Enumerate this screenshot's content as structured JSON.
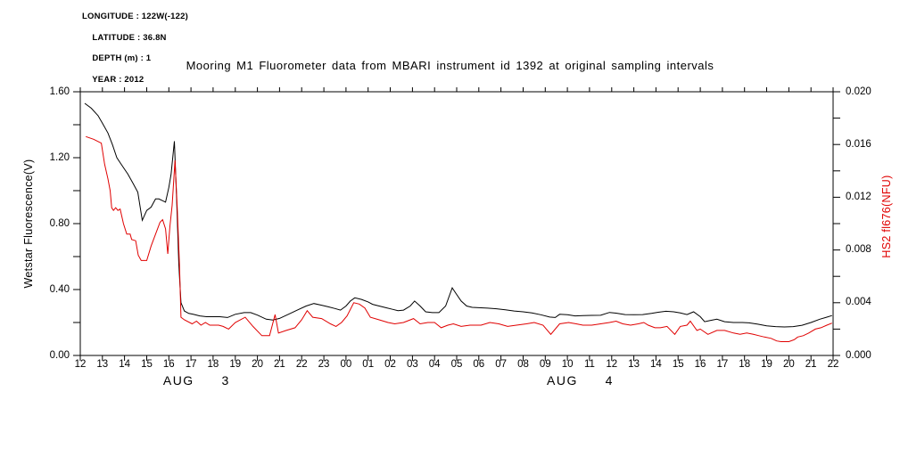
{
  "header": {
    "longitude": "LONGITUDE : 122W(-122)",
    "latitude": "LATITUDE : 36.8N",
    "depth": "DEPTH (m) : 1",
    "year": "YEAR : 2012"
  },
  "title": "Mooring M1 Fluorometer data from MBARI instrument id 1392 at original sampling intervals",
  "colors": {
    "foreground": "#000000",
    "accent_red": "#e00000",
    "background": "#ffffff"
  },
  "chart_data": {
    "type": "line",
    "title": "Mooring M1 Fluorometer data from MBARI instrument id 1392 at original sampling intervals",
    "grid": false,
    "legend": "none (dual y-axis, color-coded axis titles)",
    "x_axis": {
      "min_hour": 12,
      "max_hour": 46,
      "tick_interval_hours": 1,
      "tick_labels": [
        "12",
        "13",
        "14",
        "15",
        "16",
        "17",
        "18",
        "19",
        "20",
        "21",
        "22",
        "23",
        "00",
        "01",
        "02",
        "03",
        "04",
        "05",
        "06",
        "07",
        "08",
        "09",
        "10",
        "11",
        "12",
        "13",
        "14",
        "15",
        "16",
        "17",
        "18",
        "19",
        "20",
        "21",
        "22"
      ],
      "day_labels": [
        {
          "text": "AUG  3",
          "center_hour": 17.25
        },
        {
          "text": "AUG  4",
          "center_hour": 34.58
        }
      ]
    },
    "y_left": {
      "label": "Wetstar Fluorescence(V)",
      "color": "#000000",
      "min": 0.0,
      "max": 1.6,
      "tick_values": [
        0.0,
        0.4,
        0.8,
        1.2,
        1.6
      ],
      "tick_labels": [
        "0.00",
        "0.40",
        "0.80",
        "1.20",
        "1.60"
      ],
      "minor_step": 0.2
    },
    "y_right": {
      "label": "HS2 fl676(NFU)",
      "color": "#e00000",
      "min": 0.0,
      "max": 0.02,
      "tick_values": [
        0.0,
        0.004,
        0.008,
        0.012,
        0.016,
        0.02
      ],
      "tick_labels": [
        "0.000",
        "0.004",
        "0.008",
        "0.012",
        "0.016",
        "0.020"
      ],
      "minor_step": 0.002
    },
    "series": [
      {
        "name": "Wetstar Fluorescence (V)",
        "axis": "left",
        "color": "#000000",
        "points": [
          [
            12.2,
            1.53
          ],
          [
            12.5,
            1.5
          ],
          [
            12.7,
            1.47
          ],
          [
            12.8,
            1.455
          ],
          [
            13.0,
            1.41
          ],
          [
            13.25,
            1.35
          ],
          [
            13.45,
            1.28
          ],
          [
            13.65,
            1.2
          ],
          [
            13.8,
            1.17
          ],
          [
            13.95,
            1.14
          ],
          [
            14.15,
            1.1
          ],
          [
            14.4,
            1.04
          ],
          [
            14.6,
            0.99
          ],
          [
            14.8,
            0.82
          ],
          [
            15.0,
            0.88
          ],
          [
            15.2,
            0.9
          ],
          [
            15.4,
            0.95
          ],
          [
            15.55,
            0.95
          ],
          [
            15.7,
            0.94
          ],
          [
            15.85,
            0.93
          ],
          [
            16.0,
            1.02
          ],
          [
            16.1,
            1.1
          ],
          [
            16.25,
            1.3
          ],
          [
            16.35,
            0.95
          ],
          [
            16.45,
            0.55
          ],
          [
            16.55,
            0.32
          ],
          [
            16.7,
            0.27
          ],
          [
            16.9,
            0.255
          ],
          [
            17.1,
            0.25
          ],
          [
            17.4,
            0.24
          ],
          [
            17.7,
            0.235
          ],
          [
            18.0,
            0.235
          ],
          [
            18.3,
            0.235
          ],
          [
            18.65,
            0.23
          ],
          [
            19.0,
            0.25
          ],
          [
            19.4,
            0.26
          ],
          [
            19.7,
            0.26
          ],
          [
            20.0,
            0.245
          ],
          [
            20.4,
            0.22
          ],
          [
            20.7,
            0.215
          ],
          [
            21.0,
            0.225
          ],
          [
            21.4,
            0.25
          ],
          [
            21.8,
            0.275
          ],
          [
            22.2,
            0.3
          ],
          [
            22.55,
            0.315
          ],
          [
            22.9,
            0.305
          ],
          [
            23.2,
            0.295
          ],
          [
            23.5,
            0.285
          ],
          [
            23.75,
            0.275
          ],
          [
            24.0,
            0.3
          ],
          [
            24.2,
            0.33
          ],
          [
            24.4,
            0.35
          ],
          [
            24.7,
            0.34
          ],
          [
            25.0,
            0.325
          ],
          [
            25.2,
            0.31
          ],
          [
            25.5,
            0.3
          ],
          [
            25.8,
            0.29
          ],
          [
            26.1,
            0.28
          ],
          [
            26.35,
            0.272
          ],
          [
            26.6,
            0.275
          ],
          [
            26.9,
            0.3
          ],
          [
            27.1,
            0.33
          ],
          [
            27.35,
            0.3
          ],
          [
            27.6,
            0.265
          ],
          [
            27.9,
            0.26
          ],
          [
            28.2,
            0.26
          ],
          [
            28.5,
            0.3
          ],
          [
            28.8,
            0.41
          ],
          [
            29.0,
            0.37
          ],
          [
            29.2,
            0.33
          ],
          [
            29.45,
            0.3
          ],
          [
            29.7,
            0.292
          ],
          [
            30.0,
            0.29
          ],
          [
            30.4,
            0.287
          ],
          [
            30.8,
            0.283
          ],
          [
            31.2,
            0.277
          ],
          [
            31.6,
            0.27
          ],
          [
            32.0,
            0.265
          ],
          [
            32.4,
            0.258
          ],
          [
            32.8,
            0.247
          ],
          [
            33.2,
            0.233
          ],
          [
            33.45,
            0.23
          ],
          [
            33.65,
            0.25
          ],
          [
            34.0,
            0.247
          ],
          [
            34.35,
            0.24
          ],
          [
            34.7,
            0.242
          ],
          [
            35.1,
            0.243
          ],
          [
            35.5,
            0.244
          ],
          [
            35.9,
            0.261
          ],
          [
            36.2,
            0.257
          ],
          [
            36.6,
            0.248
          ],
          [
            37.0,
            0.247
          ],
          [
            37.4,
            0.248
          ],
          [
            37.8,
            0.255
          ],
          [
            38.1,
            0.262
          ],
          [
            38.45,
            0.268
          ],
          [
            38.8,
            0.265
          ],
          [
            39.1,
            0.258
          ],
          [
            39.4,
            0.248
          ],
          [
            39.7,
            0.265
          ],
          [
            40.0,
            0.235
          ],
          [
            40.2,
            0.205
          ],
          [
            40.45,
            0.212
          ],
          [
            40.75,
            0.22
          ],
          [
            41.1,
            0.205
          ],
          [
            41.5,
            0.2
          ],
          [
            41.9,
            0.2
          ],
          [
            42.2,
            0.198
          ],
          [
            42.6,
            0.19
          ],
          [
            43.0,
            0.18
          ],
          [
            43.4,
            0.175
          ],
          [
            43.8,
            0.173
          ],
          [
            44.2,
            0.175
          ],
          [
            44.6,
            0.183
          ],
          [
            45.0,
            0.2
          ],
          [
            45.4,
            0.22
          ],
          [
            45.7,
            0.232
          ],
          [
            45.95,
            0.242
          ]
        ]
      },
      {
        "name": "HS2 fl676 (NFU)",
        "axis": "right",
        "color": "#e00000",
        "points": [
          [
            12.25,
            0.0166
          ],
          [
            12.6,
            0.0164
          ],
          [
            12.95,
            0.0161
          ],
          [
            13.1,
            0.0145
          ],
          [
            13.25,
            0.0134
          ],
          [
            13.35,
            0.0125
          ],
          [
            13.42,
            0.0112
          ],
          [
            13.5,
            0.011
          ],
          [
            13.6,
            0.0112
          ],
          [
            13.7,
            0.011
          ],
          [
            13.8,
            0.0111
          ],
          [
            13.95,
            0.01
          ],
          [
            14.1,
            0.0092
          ],
          [
            14.25,
            0.0092
          ],
          [
            14.32,
            0.0088
          ],
          [
            14.5,
            0.0087
          ],
          [
            14.62,
            0.0076
          ],
          [
            14.75,
            0.0072
          ],
          [
            15.0,
            0.0072
          ],
          [
            15.2,
            0.0083
          ],
          [
            15.4,
            0.0092
          ],
          [
            15.6,
            0.0101
          ],
          [
            15.72,
            0.0103
          ],
          [
            15.85,
            0.0096
          ],
          [
            15.95,
            0.0077
          ],
          [
            16.05,
            0.0098
          ],
          [
            16.15,
            0.0114
          ],
          [
            16.28,
            0.0148
          ],
          [
            16.38,
            0.0112
          ],
          [
            16.48,
            0.0069
          ],
          [
            16.55,
            0.0029
          ],
          [
            16.7,
            0.0027
          ],
          [
            17.05,
            0.0024
          ],
          [
            17.25,
            0.0026
          ],
          [
            17.45,
            0.0023
          ],
          [
            17.65,
            0.0025
          ],
          [
            17.85,
            0.0023
          ],
          [
            18.25,
            0.0023
          ],
          [
            18.45,
            0.0022
          ],
          [
            18.7,
            0.002
          ],
          [
            19.0,
            0.0025
          ],
          [
            19.45,
            0.0029
          ],
          [
            19.8,
            0.0022
          ],
          [
            20.2,
            0.0015
          ],
          [
            20.55,
            0.0015
          ],
          [
            20.8,
            0.0031
          ],
          [
            20.95,
            0.0017
          ],
          [
            21.3,
            0.0019
          ],
          [
            21.7,
            0.0021
          ],
          [
            22.0,
            0.0027
          ],
          [
            22.25,
            0.0034
          ],
          [
            22.5,
            0.0029
          ],
          [
            22.9,
            0.0028
          ],
          [
            23.3,
            0.0024
          ],
          [
            23.55,
            0.0022
          ],
          [
            23.8,
            0.0025
          ],
          [
            24.05,
            0.003
          ],
          [
            24.35,
            0.004
          ],
          [
            24.6,
            0.0039
          ],
          [
            24.85,
            0.0036
          ],
          [
            25.1,
            0.0029
          ],
          [
            25.5,
            0.0027
          ],
          [
            25.9,
            0.0025
          ],
          [
            26.2,
            0.0024
          ],
          [
            26.6,
            0.0025
          ],
          [
            27.05,
            0.0028
          ],
          [
            27.35,
            0.0024
          ],
          [
            27.7,
            0.0025
          ],
          [
            28.0,
            0.0025
          ],
          [
            28.3,
            0.0021
          ],
          [
            28.6,
            0.0023
          ],
          [
            28.85,
            0.0024
          ],
          [
            29.2,
            0.0022
          ],
          [
            29.6,
            0.0023
          ],
          [
            30.1,
            0.0023
          ],
          [
            30.5,
            0.0025
          ],
          [
            30.9,
            0.0024
          ],
          [
            31.3,
            0.0022
          ],
          [
            31.7,
            0.0023
          ],
          [
            32.15,
            0.0024
          ],
          [
            32.5,
            0.0025
          ],
          [
            32.9,
            0.0023
          ],
          [
            33.25,
            0.0016
          ],
          [
            33.65,
            0.0024
          ],
          [
            34.05,
            0.0025
          ],
          [
            34.4,
            0.0024
          ],
          [
            34.7,
            0.0023
          ],
          [
            35.1,
            0.0023
          ],
          [
            35.5,
            0.0024
          ],
          [
            35.9,
            0.0025
          ],
          [
            36.2,
            0.0026
          ],
          [
            36.5,
            0.0024
          ],
          [
            36.85,
            0.0023
          ],
          [
            37.2,
            0.0024
          ],
          [
            37.45,
            0.0025
          ],
          [
            37.65,
            0.0023
          ],
          [
            37.95,
            0.0021
          ],
          [
            38.2,
            0.0021
          ],
          [
            38.5,
            0.0022
          ],
          [
            38.85,
            0.0016
          ],
          [
            39.1,
            0.0022
          ],
          [
            39.4,
            0.0023
          ],
          [
            39.55,
            0.0026
          ],
          [
            39.85,
            0.0019
          ],
          [
            40.0,
            0.002
          ],
          [
            40.35,
            0.0016
          ],
          [
            40.75,
            0.0019
          ],
          [
            41.1,
            0.0019
          ],
          [
            41.5,
            0.0017
          ],
          [
            41.8,
            0.0016
          ],
          [
            42.1,
            0.0017
          ],
          [
            42.4,
            0.0016
          ],
          [
            42.65,
            0.0015
          ],
          [
            42.9,
            0.0014
          ],
          [
            43.2,
            0.0013
          ],
          [
            43.45,
            0.0011
          ],
          [
            43.65,
            0.00105
          ],
          [
            44.0,
            0.00105
          ],
          [
            44.25,
            0.0012
          ],
          [
            44.4,
            0.0014
          ],
          [
            44.65,
            0.0015
          ],
          [
            44.9,
            0.0017
          ],
          [
            45.2,
            0.002
          ],
          [
            45.45,
            0.0021
          ],
          [
            45.72,
            0.0023
          ],
          [
            45.95,
            0.00245
          ]
        ]
      }
    ]
  }
}
